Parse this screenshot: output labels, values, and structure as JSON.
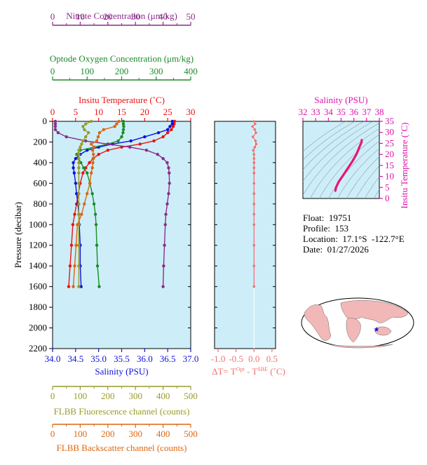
{
  "colors": {
    "nitrate": "#8b2c8b",
    "oxygen": "#1a8c2a",
    "temperature": "#ee1111",
    "salinity": "#1010dd",
    "fluorescence": "#9a9a2a",
    "backscatter": "#dd6611",
    "delta_t": "#f07070",
    "ts_axis": "#dd11aa",
    "ts_curve": "#e8157a",
    "plot_bg": "#cdeef8"
  },
  "info": {
    "float": "Float:  19751",
    "profile": "Profile:  153",
    "location": "Location:  17.1°S  -122.7°E",
    "date": "Date:  01/27/2026"
  },
  "axes": {
    "nitrate": {
      "label": "Nitrate Concentration (μm/kg)",
      "ticks": [
        "0",
        "10",
        "20",
        "30",
        "40",
        "50"
      ],
      "range": [
        0,
        50
      ]
    },
    "oxygen": {
      "label": "Optode Oxygen Concentration (μm/kg)",
      "ticks": [
        "0",
        "100",
        "200",
        "300",
        "400"
      ],
      "range": [
        0,
        400
      ]
    },
    "temperature": {
      "label": "Insitu Temperature (˚C)",
      "ticks": [
        "0",
        "5",
        "10",
        "15",
        "20",
        "25",
        "30"
      ],
      "range": [
        0,
        30
      ]
    },
    "salinity": {
      "label": "Salinity (PSU)",
      "ticks": [
        "34.0",
        "34.5",
        "35.0",
        "35.5",
        "36.0",
        "36.5",
        "37.0"
      ],
      "range": [
        34.0,
        37.0
      ]
    },
    "pressure": {
      "label": "Pressure (decibar)",
      "ticks": [
        "0",
        "200",
        "400",
        "600",
        "800",
        "1000",
        "1200",
        "1400",
        "1600",
        "1800",
        "2000",
        "2200"
      ],
      "range": [
        0,
        2200
      ]
    },
    "fluorescence": {
      "label": "FLBB Fluorescence channel (counts)",
      "ticks": [
        "0",
        "100",
        "200",
        "300",
        "400",
        "500"
      ],
      "range": [
        0,
        500
      ]
    },
    "backscatter": {
      "label": "FLBB Backscatter channel (counts)",
      "ticks": [
        "0",
        "100",
        "200",
        "300",
        "400",
        "500"
      ],
      "range": [
        0,
        500
      ]
    },
    "delta_t": {
      "label_main": "ΔT= T",
      "label_sup1": "Opt",
      "label_mid": " - T",
      "label_sup2": "SBE",
      "label_end": " (˚C)",
      "ticks": [
        "-1.0",
        "-0.5",
        "0.0",
        "0.5"
      ],
      "range": [
        -1.1,
        0.6
      ]
    },
    "ts_salinity": {
      "label": "Salinity (PSU)",
      "ticks": [
        "32",
        "33",
        "34",
        "35",
        "36",
        "37",
        "38"
      ],
      "range": [
        32,
        38
      ]
    },
    "ts_temperature": {
      "label": "Insitu Temperature (˚C)",
      "ticks": [
        "0",
        "5",
        "10",
        "15",
        "20",
        "25",
        "30",
        "35"
      ],
      "range": [
        0,
        35
      ]
    }
  },
  "chart_data": [
    {
      "type": "line",
      "title": "",
      "ylabel": "Pressure (decibar)",
      "ylim": [
        0,
        2200
      ],
      "series": [
        {
          "name": "Insitu Temperature (˚C)",
          "axis": "temperature",
          "x": [
            26.5,
            26.4,
            26.2,
            25.8,
            25.0,
            24.0,
            22.0,
            19.0,
            15.0,
            12.0,
            10.0,
            8.8,
            8.0,
            7.2,
            6.6,
            6.0,
            5.6,
            5.2,
            4.8,
            4.4,
            4.1,
            3.8,
            3.5
          ],
          "y": [
            0,
            25,
            50,
            80,
            110,
            150,
            190,
            220,
            250,
            280,
            320,
            360,
            400,
            450,
            500,
            600,
            700,
            800,
            900,
            1000,
            1200,
            1400,
            1600
          ]
        },
        {
          "name": "Salinity (PSU)",
          "axis": "salinity",
          "x": [
            36.6,
            36.6,
            36.55,
            36.5,
            36.3,
            36.0,
            35.7,
            35.3,
            35.0,
            34.75,
            34.6,
            34.5,
            34.45,
            34.45,
            34.47,
            34.5,
            34.52,
            34.55,
            34.57,
            34.58,
            34.6,
            34.6,
            34.62
          ],
          "y": [
            0,
            25,
            50,
            80,
            110,
            150,
            190,
            220,
            250,
            280,
            320,
            360,
            400,
            450,
            500,
            600,
            700,
            800,
            900,
            1000,
            1200,
            1400,
            1600
          ]
        },
        {
          "name": "Optode Oxygen Concentration (μm/kg)",
          "axis": "oxygen",
          "x": [
            205,
            205,
            206,
            205,
            204,
            200,
            190,
            160,
            120,
            80,
            70,
            75,
            82,
            90,
            100,
            108,
            115,
            120,
            124,
            126,
            128,
            130,
            135
          ],
          "y": [
            0,
            25,
            50,
            80,
            110,
            150,
            190,
            220,
            250,
            280,
            320,
            360,
            400,
            450,
            500,
            600,
            700,
            800,
            900,
            1000,
            1200,
            1400,
            1600
          ]
        },
        {
          "name": "Nitrate Concentration (μm/kg)",
          "axis": "nitrate",
          "x": [
            1,
            1,
            1,
            1,
            2,
            5,
            12,
            20,
            28,
            34,
            38,
            40,
            41.5,
            42,
            42.2,
            42.3,
            42.0,
            41.5,
            41.0,
            40.8,
            40.5,
            40.2,
            40.0
          ],
          "y": [
            0,
            25,
            50,
            80,
            110,
            150,
            190,
            220,
            250,
            280,
            320,
            360,
            400,
            450,
            500,
            600,
            700,
            800,
            900,
            1000,
            1200,
            1400,
            1600
          ]
        },
        {
          "name": "FLBB Fluorescence channel (counts)",
          "axis": "fluorescence",
          "x": [
            140,
            120,
            110,
            115,
            130,
            120,
            110,
            105,
            100,
            95,
            95,
            95,
            95,
            95,
            95,
            95,
            95,
            95,
            95,
            95,
            95,
            95,
            95
          ],
          "y": [
            0,
            25,
            50,
            80,
            110,
            150,
            190,
            220,
            250,
            280,
            320,
            360,
            400,
            450,
            500,
            600,
            700,
            800,
            900,
            1000,
            1200,
            1400,
            1600
          ]
        },
        {
          "name": "FLBB Backscatter channel (counts)",
          "axis": "backscatter",
          "x": [
            240,
            232,
            225,
            185,
            170,
            165,
            160,
            140,
            150,
            145,
            148,
            148,
            146,
            144,
            140,
            135,
            125,
            115,
            105,
            90,
            85,
            80,
            75
          ],
          "y": [
            0,
            25,
            50,
            80,
            110,
            150,
            190,
            220,
            250,
            280,
            320,
            360,
            400,
            450,
            500,
            600,
            700,
            800,
            900,
            1000,
            1200,
            1400,
            1600
          ]
        }
      ]
    },
    {
      "type": "scatter",
      "title": "",
      "xlabel": "ΔT= Tᴼᵖᵗ - Tˢᴮᴱ (˚C)",
      "ylim": [
        0,
        2200
      ],
      "xlim": [
        -1.1,
        0.6
      ],
      "series": [
        {
          "name": "ΔT",
          "x": [
            0.0,
            0.03,
            -0.04,
            0.02,
            0.05,
            -0.03,
            0.04,
            0.06,
            0.02,
            -0.02,
            0.0,
            0.0,
            0.0,
            0.0,
            0.0,
            0.0,
            0.0,
            0.0,
            0.0,
            0.0,
            0.0,
            0.0,
            0.0
          ],
          "y": [
            0,
            25,
            50,
            80,
            110,
            150,
            190,
            220,
            250,
            280,
            320,
            360,
            400,
            450,
            500,
            600,
            700,
            800,
            900,
            1000,
            1200,
            1400,
            1600
          ]
        }
      ]
    },
    {
      "type": "line",
      "title": "",
      "xlabel": "Salinity (PSU)",
      "ylabel": "Insitu Temperature (˚C)",
      "xlim": [
        32,
        38
      ],
      "ylim": [
        0,
        35
      ],
      "series": [
        {
          "name": "T-S",
          "x": [
            34.55,
            34.6,
            34.8,
            35.1,
            35.5,
            35.9,
            36.2,
            36.45,
            36.6,
            36.62
          ],
          "y": [
            3.5,
            5.0,
            7.5,
            10.0,
            13.5,
            17.0,
            20.0,
            23.5,
            25.5,
            26.5
          ]
        }
      ]
    },
    {
      "type": "scatter",
      "title": "",
      "series": [
        {
          "name": "float position",
          "lon": -122.7,
          "lat": -17.1
        }
      ]
    }
  ]
}
